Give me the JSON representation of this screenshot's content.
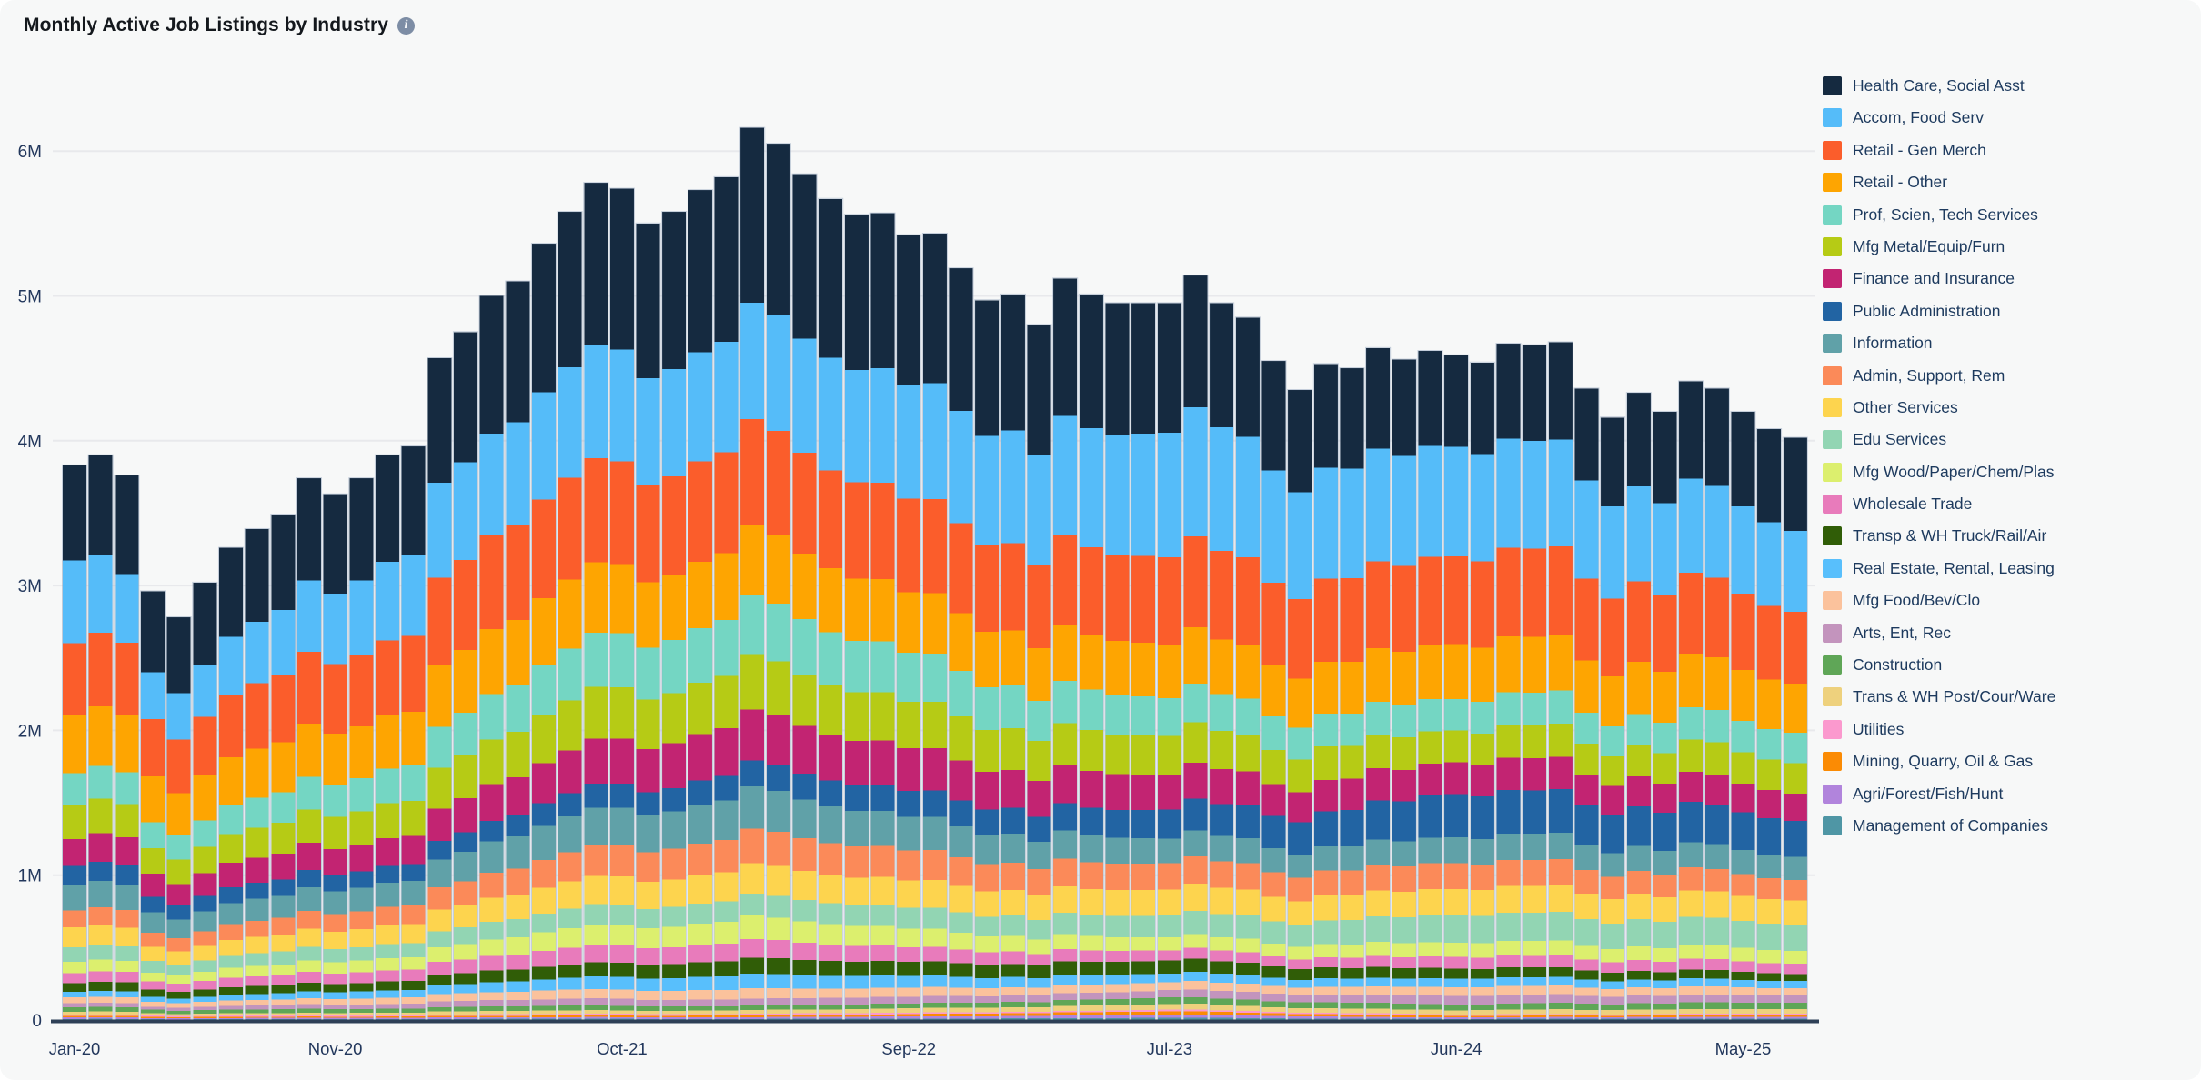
{
  "header": {
    "title": "Monthly Active Job Listings by Industry"
  },
  "chart_data": {
    "type": "bar",
    "stacked": true,
    "title": "Monthly Active Job Listings by Industry",
    "value_unit": "millions of listings",
    "xlabel": "",
    "ylabel": "",
    "ylim": [
      0,
      6.45
    ],
    "grid": "horizontal",
    "legend_position": "right",
    "y_ticks": [
      "0",
      "1M",
      "2M",
      "3M",
      "4M",
      "5M",
      "6M"
    ],
    "x_ticks": [
      {
        "index": 0,
        "label": "Jan-20"
      },
      {
        "index": 10,
        "label": "Nov-20"
      },
      {
        "index": 21,
        "label": "Oct-21"
      },
      {
        "index": 32,
        "label": "Sep-22"
      },
      {
        "index": 42,
        "label": "Jul-23"
      },
      {
        "index": 53,
        "label": "Jun-24"
      },
      {
        "index": 64,
        "label": "May-25"
      }
    ],
    "n_months": 67,
    "x_start": "Jan-20",
    "x_end": "Jul-25",
    "totals_millions": [
      3.83,
      3.9,
      3.76,
      2.96,
      2.78,
      3.02,
      3.26,
      3.39,
      3.49,
      3.74,
      3.63,
      3.74,
      3.9,
      3.96,
      4.57,
      4.75,
      5.0,
      5.1,
      5.36,
      5.58,
      5.78,
      5.74,
      5.5,
      5.58,
      5.73,
      5.82,
      6.16,
      6.05,
      5.84,
      5.67,
      5.56,
      5.57,
      5.42,
      5.43,
      5.19,
      4.97,
      5.01,
      4.8,
      5.12,
      5.01,
      4.95,
      4.95,
      4.95,
      5.14,
      4.95,
      4.85,
      4.55,
      4.35,
      4.53,
      4.5,
      4.64,
      4.56,
      4.62,
      4.59,
      4.54,
      4.67,
      4.66,
      4.68,
      4.36,
      4.16,
      4.33,
      4.2,
      4.41,
      4.36,
      4.2,
      4.08,
      4.02
    ],
    "series_note": "Stack order top-to-bottom matches this list. Value for month m (0=Jan-20) = linear interpolation of keyframes {monthIndex: millions}, scaled so the stack sum equals totals_millions[m].",
    "series": [
      {
        "name": "Health Care, Social Asst",
        "color": "#152A40",
        "keyframes": {
          "0": 0.66,
          "3": 0.56,
          "14": 0.85,
          "26": 1.2,
          "42": 0.89,
          "53": 0.63,
          "66": 0.64
        }
      },
      {
        "name": "Accom, Food Serv",
        "color": "#55BCF9",
        "keyframes": {
          "0": 0.58,
          "3": 0.33,
          "14": 0.65,
          "26": 0.8,
          "42": 0.86,
          "53": 0.76,
          "66": 0.56
        }
      },
      {
        "name": "Retail - Gen Merch",
        "color": "#FB5D2B",
        "keyframes": {
          "0": 0.5,
          "3": 0.4,
          "14": 0.6,
          "26": 0.73,
          "42": 0.6,
          "53": 0.61,
          "66": 0.5
        }
      },
      {
        "name": "Retail - Other",
        "color": "#FEA501",
        "keyframes": {
          "0": 0.41,
          "3": 0.32,
          "14": 0.42,
          "26": 0.48,
          "42": 0.37,
          "53": 0.38,
          "66": 0.34
        }
      },
      {
        "name": "Prof, Scien, Tech Services",
        "color": "#74D6C3",
        "keyframes": {
          "0": 0.22,
          "3": 0.18,
          "14": 0.28,
          "26": 0.41,
          "42": 0.26,
          "53": 0.22,
          "66": 0.21
        }
      },
      {
        "name": "Mfg Metal/Equip/Furn",
        "color": "#B6CB15",
        "keyframes": {
          "0": 0.24,
          "3": 0.18,
          "14": 0.28,
          "26": 0.38,
          "42": 0.27,
          "53": 0.22,
          "66": 0.21
        }
      },
      {
        "name": "Finance and Insurance",
        "color": "#C22472",
        "keyframes": {
          "0": 0.19,
          "3": 0.16,
          "14": 0.22,
          "26": 0.35,
          "42": 0.24,
          "53": 0.22,
          "66": 0.19
        }
      },
      {
        "name": "Public Administration",
        "color": "#2264A3",
        "keyframes": {
          "0": 0.13,
          "3": 0.11,
          "14": 0.13,
          "26": 0.18,
          "42": 0.2,
          "53": 0.3,
          "66": 0.25
        }
      },
      {
        "name": "Information",
        "color": "#60A1A8",
        "keyframes": {
          "0": 0.18,
          "3": 0.14,
          "14": 0.19,
          "26": 0.29,
          "42": 0.17,
          "53": 0.18,
          "66": 0.16
        }
      },
      {
        "name": "Admin, Support, Rem",
        "color": "#FB8A59",
        "keyframes": {
          "0": 0.12,
          "3": 0.1,
          "14": 0.15,
          "26": 0.24,
          "42": 0.18,
          "53": 0.18,
          "66": 0.14
        }
      },
      {
        "name": "Other Services",
        "color": "#FDD44E",
        "keyframes": {
          "0": 0.14,
          "3": 0.1,
          "14": 0.15,
          "26": 0.21,
          "42": 0.18,
          "53": 0.18,
          "66": 0.17
        }
      },
      {
        "name": "Edu Services",
        "color": "#92D5B3",
        "keyframes": {
          "0": 0.1,
          "3": 0.08,
          "14": 0.11,
          "26": 0.15,
          "42": 0.15,
          "53": 0.19,
          "66": 0.18
        }
      },
      {
        "name": "Mfg Wood/Paper/Chem/Plas",
        "color": "#DCEF6E",
        "keyframes": {
          "0": 0.08,
          "3": 0.06,
          "14": 0.1,
          "26": 0.16,
          "42": 0.09,
          "53": 0.1,
          "66": 0.09
        }
      },
      {
        "name": "Wholesale Trade",
        "color": "#E87BBB",
        "keyframes": {
          "0": 0.07,
          "3": 0.06,
          "14": 0.09,
          "26": 0.13,
          "42": 0.07,
          "53": 0.08,
          "66": 0.07
        }
      },
      {
        "name": "Transp & WH Truck/Rail/Air",
        "color": "#305D07",
        "keyframes": {
          "0": 0.06,
          "3": 0.05,
          "14": 0.07,
          "26": 0.11,
          "42": 0.09,
          "53": 0.07,
          "66": 0.05
        }
      },
      {
        "name": "Real Estate, Rental, Leasing",
        "color": "#58BFFC",
        "keyframes": {
          "0": 0.04,
          "3": 0.035,
          "14": 0.06,
          "26": 0.1,
          "42": 0.06,
          "53": 0.06,
          "66": 0.05
        }
      },
      {
        "name": "Mfg Food/Bev/Clo",
        "color": "#FBC29C",
        "keyframes": {
          "0": 0.04,
          "3": 0.035,
          "14": 0.05,
          "26": 0.07,
          "42": 0.055,
          "53": 0.06,
          "66": 0.05
        }
      },
      {
        "name": "Arts, Ent, Rec",
        "color": "#C394BD",
        "keyframes": {
          "0": 0.03,
          "3": 0.02,
          "14": 0.04,
          "26": 0.05,
          "42": 0.05,
          "53": 0.06,
          "66": 0.05
        }
      },
      {
        "name": "Construction",
        "color": "#5FA657",
        "keyframes": {
          "0": 0.03,
          "3": 0.025,
          "14": 0.03,
          "26": 0.03,
          "42": 0.045,
          "53": 0.04,
          "66": 0.045
        }
      },
      {
        "name": "Trans & WH Post/Cour/Ware",
        "color": "#EED17D",
        "keyframes": {
          "0": 0.02,
          "3": 0.015,
          "14": 0.02,
          "26": 0.025,
          "42": 0.04,
          "53": 0.03,
          "66": 0.03
        }
      },
      {
        "name": "Utilities",
        "color": "#FB99CE",
        "keyframes": {
          "0": 0.01,
          "3": 0.01,
          "14": 0.01,
          "26": 0.012,
          "42": 0.01,
          "53": 0.01,
          "66": 0.01
        }
      },
      {
        "name": "Mining, Quarry, Oil & Gas",
        "color": "#FB8B04",
        "keyframes": {
          "0": 0.01,
          "3": 0.008,
          "14": 0.01,
          "26": 0.012,
          "42": 0.025,
          "53": 0.01,
          "66": 0.012
        }
      },
      {
        "name": "Agri/Forest/Fish/Hunt",
        "color": "#B184DC",
        "keyframes": {
          "0": 0.01,
          "3": 0.008,
          "14": 0.01,
          "26": 0.012,
          "42": 0.02,
          "53": 0.01,
          "66": 0.012
        }
      },
      {
        "name": "Management of Companies",
        "color": "#4F96A5",
        "keyframes": {
          "0": 0.012,
          "3": 0.01,
          "14": 0.012,
          "26": 0.012,
          "42": 0.02,
          "53": 0.012,
          "66": 0.015
        }
      }
    ],
    "colors": {
      "background": "#f7f8f8",
      "gridline": "#e8e9ec",
      "axis_line": "#2e4057",
      "axis_text": "#22375c",
      "legend_text": "#1d3a5e",
      "title_text": "#14181d",
      "info_icon_bg": "#7d8da5"
    }
  }
}
